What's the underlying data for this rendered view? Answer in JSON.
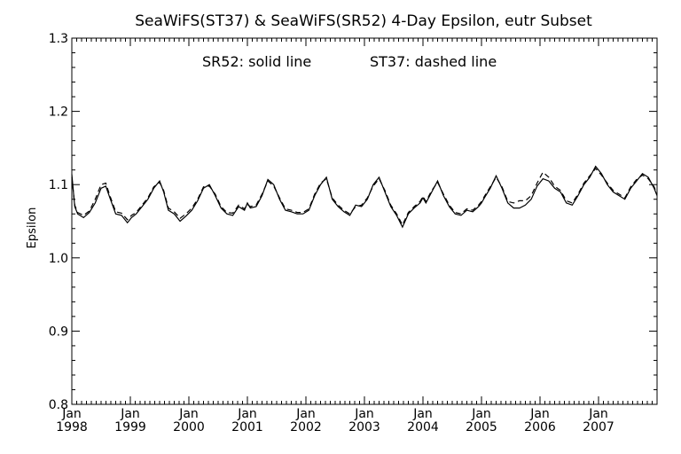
{
  "chart_data": {
    "type": "line",
    "title": "SeaWiFS(ST37) & SeaWiFS(SR52) 4-Day Epsilon, eutr Subset",
    "annotation_left": "SR52: solid line",
    "annotation_right": "ST37: dashed line",
    "xlabel": "",
    "ylabel": "Epsilon",
    "ylim": [
      0.8,
      1.3
    ],
    "xlim": [
      1998.0,
      2008.0
    ],
    "grid": false,
    "y_ticks": [
      "0.8",
      "0.9",
      "1.0",
      "1.1",
      "1.2",
      "1.3"
    ],
    "x_ticks": [
      {
        "month": "Jan",
        "year": "1998"
      },
      {
        "month": "Jan",
        "year": "1999"
      },
      {
        "month": "Jan",
        "year": "2000"
      },
      {
        "month": "Jan",
        "year": "2001"
      },
      {
        "month": "Jan",
        "year": "2002"
      },
      {
        "month": "Jan",
        "year": "2003"
      },
      {
        "month": "Jan",
        "year": "2004"
      },
      {
        "month": "Jan",
        "year": "2005"
      },
      {
        "month": "Jan",
        "year": "2006"
      },
      {
        "month": "Jan",
        "year": "2007"
      }
    ],
    "series": [
      {
        "name": "SR52",
        "style": "solid",
        "x": [
          1998.0,
          1998.05,
          1998.1,
          1998.2,
          1998.3,
          1998.4,
          1998.5,
          1998.58,
          1998.65,
          1998.75,
          1998.85,
          1998.95,
          1999.02,
          1999.1,
          1999.2,
          1999.3,
          1999.4,
          1999.5,
          1999.57,
          1999.65,
          1999.75,
          1999.85,
          1999.95,
          2000.05,
          2000.15,
          2000.25,
          2000.35,
          2000.45,
          2000.55,
          2000.65,
          2000.75,
          2000.85,
          2000.95,
          2001.0,
          2001.05,
          2001.15,
          2001.25,
          2001.35,
          2001.45,
          2001.55,
          2001.65,
          2001.75,
          2001.85,
          2001.95,
          2002.05,
          2002.15,
          2002.25,
          2002.35,
          2002.45,
          2002.55,
          2002.65,
          2002.75,
          2002.85,
          2002.95,
          2003.05,
          2003.15,
          2003.25,
          2003.35,
          2003.45,
          2003.55,
          2003.65,
          2003.75,
          2003.85,
          2003.95,
          2004.0,
          2004.05,
          2004.15,
          2004.25,
          2004.35,
          2004.45,
          2004.55,
          2004.65,
          2004.75,
          2004.85,
          2004.95,
          2005.0,
          2005.05,
          2005.15,
          2005.25,
          2005.35,
          2005.45,
          2005.55,
          2005.65,
          2005.75,
          2005.85,
          2005.95,
          2006.05,
          2006.15,
          2006.25,
          2006.35,
          2006.45,
          2006.55,
          2006.65,
          2006.75,
          2006.85,
          2006.95,
          2007.05,
          2007.15,
          2007.25,
          2007.35,
          2007.45,
          2007.55,
          2007.65,
          2007.75,
          2007.85,
          2007.95,
          2008.0
        ],
        "values": [
          1.114,
          1.07,
          1.06,
          1.055,
          1.062,
          1.075,
          1.095,
          1.098,
          1.082,
          1.06,
          1.058,
          1.048,
          1.055,
          1.06,
          1.07,
          1.08,
          1.095,
          1.105,
          1.09,
          1.065,
          1.06,
          1.05,
          1.057,
          1.065,
          1.078,
          1.095,
          1.1,
          1.085,
          1.068,
          1.06,
          1.058,
          1.07,
          1.065,
          1.075,
          1.068,
          1.07,
          1.085,
          1.107,
          1.1,
          1.08,
          1.065,
          1.063,
          1.06,
          1.06,
          1.065,
          1.085,
          1.1,
          1.11,
          1.08,
          1.07,
          1.063,
          1.058,
          1.072,
          1.07,
          1.08,
          1.1,
          1.11,
          1.09,
          1.07,
          1.058,
          1.042,
          1.06,
          1.068,
          1.075,
          1.082,
          1.075,
          1.09,
          1.105,
          1.085,
          1.07,
          1.06,
          1.058,
          1.065,
          1.063,
          1.07,
          1.075,
          1.082,
          1.095,
          1.112,
          1.095,
          1.075,
          1.068,
          1.068,
          1.072,
          1.08,
          1.098,
          1.108,
          1.105,
          1.095,
          1.09,
          1.075,
          1.072,
          1.085,
          1.1,
          1.11,
          1.125,
          1.115,
          1.1,
          1.09,
          1.085,
          1.08,
          1.095,
          1.105,
          1.115,
          1.11,
          1.095,
          1.085
        ]
      },
      {
        "name": "ST37",
        "style": "dashed",
        "x": [
          1998.0,
          1998.05,
          1998.1,
          1998.2,
          1998.3,
          1998.4,
          1998.5,
          1998.58,
          1998.65,
          1998.75,
          1998.85,
          1998.95,
          1999.02,
          1999.1,
          1999.2,
          1999.3,
          1999.4,
          1999.5,
          1999.57,
          1999.65,
          1999.75,
          1999.85,
          1999.95,
          2000.05,
          2000.15,
          2000.25,
          2000.35,
          2000.45,
          2000.55,
          2000.65,
          2000.75,
          2000.85,
          2000.95,
          2001.0,
          2001.05,
          2001.15,
          2001.25,
          2001.35,
          2001.45,
          2001.55,
          2001.65,
          2001.75,
          2001.85,
          2001.95,
          2002.05,
          2002.15,
          2002.25,
          2002.35,
          2002.45,
          2002.55,
          2002.65,
          2002.75,
          2002.85,
          2002.95,
          2003.05,
          2003.15,
          2003.25,
          2003.35,
          2003.45,
          2003.55,
          2003.65,
          2003.75,
          2003.85,
          2003.95,
          2004.0,
          2004.05,
          2004.15,
          2004.25,
          2004.35,
          2004.45,
          2004.55,
          2004.65,
          2004.75,
          2004.85,
          2004.95,
          2005.0,
          2005.05,
          2005.15,
          2005.25,
          2005.35,
          2005.45,
          2005.55,
          2005.65,
          2005.75,
          2005.85,
          2005.95,
          2006.05,
          2006.15,
          2006.25,
          2006.35,
          2006.45,
          2006.55,
          2006.65,
          2006.75,
          2006.85,
          2006.95,
          2007.05,
          2007.15,
          2007.25,
          2007.35,
          2007.45,
          2007.55,
          2007.65,
          2007.75,
          2007.85,
          2007.95,
          2008.0
        ],
        "values": [
          1.11,
          1.072,
          1.062,
          1.058,
          1.064,
          1.08,
          1.1,
          1.102,
          1.085,
          1.063,
          1.061,
          1.052,
          1.058,
          1.062,
          1.072,
          1.082,
          1.097,
          1.103,
          1.092,
          1.068,
          1.063,
          1.054,
          1.06,
          1.068,
          1.08,
          1.097,
          1.098,
          1.087,
          1.07,
          1.062,
          1.061,
          1.072,
          1.067,
          1.073,
          1.07,
          1.072,
          1.087,
          1.105,
          1.098,
          1.082,
          1.067,
          1.065,
          1.062,
          1.062,
          1.067,
          1.087,
          1.102,
          1.108,
          1.082,
          1.072,
          1.065,
          1.06,
          1.07,
          1.072,
          1.082,
          1.098,
          1.108,
          1.092,
          1.072,
          1.06,
          1.045,
          1.062,
          1.07,
          1.077,
          1.084,
          1.077,
          1.092,
          1.103,
          1.087,
          1.072,
          1.062,
          1.06,
          1.067,
          1.065,
          1.072,
          1.077,
          1.084,
          1.097,
          1.11,
          1.097,
          1.077,
          1.075,
          1.078,
          1.078,
          1.085,
          1.102,
          1.117,
          1.11,
          1.098,
          1.092,
          1.078,
          1.075,
          1.087,
          1.102,
          1.112,
          1.122,
          1.113,
          1.102,
          1.092,
          1.087,
          1.082,
          1.097,
          1.107,
          1.113,
          1.108,
          1.097,
          1.087
        ]
      }
    ]
  }
}
